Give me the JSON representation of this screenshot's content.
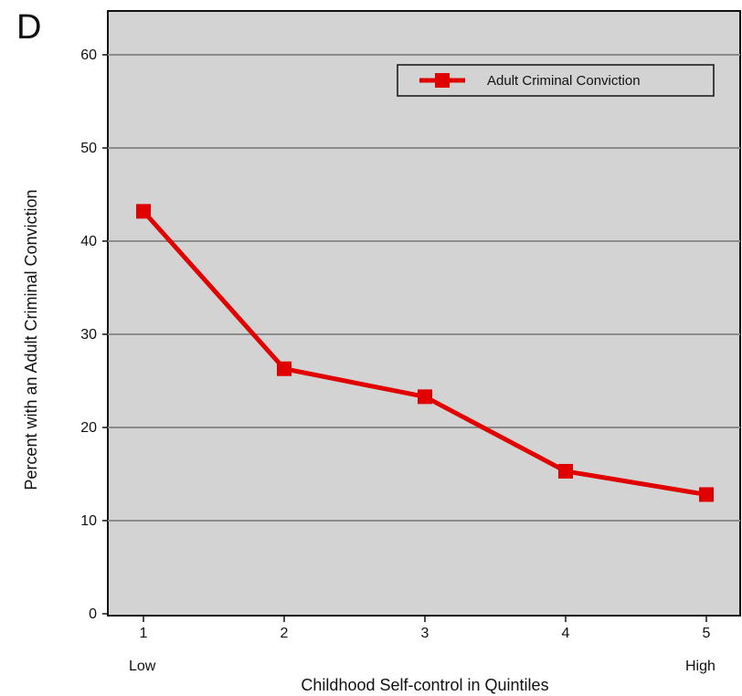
{
  "panel_label": "D",
  "chart_data": {
    "type": "line",
    "x": [
      1,
      2,
      3,
      4,
      5
    ],
    "x_tick_labels": [
      "1",
      "2",
      "3",
      "4",
      "5"
    ],
    "x_end_labels": {
      "low": "Low",
      "high": "High"
    },
    "series": [
      {
        "name": "Adult Criminal Conviction",
        "values": [
          43.2,
          26.3,
          23.3,
          15.3,
          12.8
        ]
      }
    ],
    "xlabel": "Childhood Self-control in Quintiles",
    "ylabel": "Percent with an Adult Criminal Conviction",
    "ylim": [
      0,
      60
    ],
    "yticks": [
      "0",
      "10",
      "20",
      "30",
      "40",
      "50",
      "60"
    ],
    "grid": true,
    "legend_position": "top-right",
    "colors": {
      "series": "#e00000",
      "plot_background": "#d3d3d3",
      "gridline": "#8c8c8c"
    }
  }
}
